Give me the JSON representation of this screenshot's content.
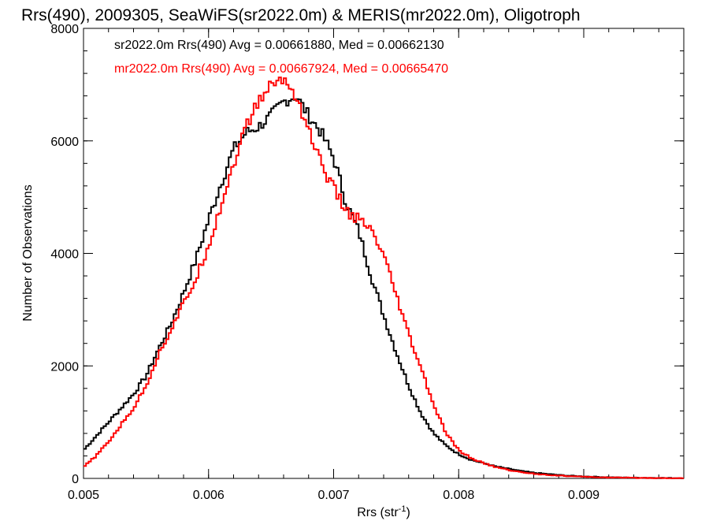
{
  "chart_data": {
    "type": "line",
    "title": "Rrs(490), 2009305, SeaWiFS(sr2022.0m) & MERIS(mr2022.0m), Oligotroph",
    "xlabel_main": "Rrs (str",
    "xlabel_sup": "-1",
    "xlabel_end": ")",
    "ylabel": "Number of Observations",
    "xlim": [
      0.005,
      0.0098
    ],
    "ylim": [
      0,
      8000
    ],
    "x_ticks": [
      0.005,
      0.006,
      0.007,
      0.008,
      0.009
    ],
    "x_tick_labels": [
      "0.005",
      "0.006",
      "0.007",
      "0.008",
      "0.009"
    ],
    "y_ticks": [
      0,
      2000,
      4000,
      6000,
      8000
    ],
    "y_tick_labels": [
      "0",
      "2000",
      "4000",
      "6000",
      "8000"
    ],
    "grid": false,
    "legend_position": "top-left",
    "series": [
      {
        "name": "sr2022.0m Rrs(490) Avg = 0.00661880, Med = 0.00662130",
        "color": "#000000",
        "points": [
          [
            0.005,
            500
          ],
          [
            0.0051,
            750
          ],
          [
            0.0052,
            1000
          ],
          [
            0.0053,
            1250
          ],
          [
            0.0054,
            1500
          ],
          [
            0.0055,
            1820
          ],
          [
            0.0056,
            2300
          ],
          [
            0.0057,
            2750
          ],
          [
            0.0058,
            3300
          ],
          [
            0.0059,
            3900
          ],
          [
            0.006,
            4600
          ],
          [
            0.0061,
            5250
          ],
          [
            0.0062,
            5850
          ],
          [
            0.0063,
            6150
          ],
          [
            0.0064,
            6250
          ],
          [
            0.0065,
            6450
          ],
          [
            0.0066,
            6700
          ],
          [
            0.0067,
            6800
          ],
          [
            0.0068,
            6450
          ],
          [
            0.0069,
            6150
          ],
          [
            0.007,
            5700
          ],
          [
            0.0071,
            4900
          ],
          [
            0.0072,
            4400
          ],
          [
            0.0073,
            3600
          ],
          [
            0.0074,
            2900
          ],
          [
            0.0075,
            2250
          ],
          [
            0.0076,
            1650
          ],
          [
            0.0077,
            1150
          ],
          [
            0.0078,
            800
          ],
          [
            0.0079,
            580
          ],
          [
            0.008,
            430
          ],
          [
            0.0081,
            330
          ],
          [
            0.0082,
            270
          ],
          [
            0.0083,
            210
          ],
          [
            0.0084,
            170
          ],
          [
            0.0085,
            130
          ],
          [
            0.0086,
            100
          ],
          [
            0.0087,
            80
          ],
          [
            0.0088,
            60
          ],
          [
            0.0089,
            45
          ],
          [
            0.009,
            35
          ],
          [
            0.0091,
            28
          ],
          [
            0.0092,
            20
          ],
          [
            0.0093,
            15
          ],
          [
            0.0094,
            12
          ],
          [
            0.0095,
            10
          ],
          [
            0.0096,
            8
          ],
          [
            0.0097,
            6
          ],
          [
            0.0098,
            5
          ]
        ]
      },
      {
        "name": "mr2022.0m Rrs(490) Avg = 0.00667924, Med = 0.00665470",
        "color": "#ff0000",
        "points": [
          [
            0.005,
            200
          ],
          [
            0.0051,
            400
          ],
          [
            0.0052,
            650
          ],
          [
            0.0053,
            950
          ],
          [
            0.0054,
            1250
          ],
          [
            0.0055,
            1650
          ],
          [
            0.0056,
            2200
          ],
          [
            0.0057,
            2650
          ],
          [
            0.0058,
            3100
          ],
          [
            0.0059,
            3550
          ],
          [
            0.006,
            4150
          ],
          [
            0.0061,
            4850
          ],
          [
            0.0062,
            5600
          ],
          [
            0.0063,
            6250
          ],
          [
            0.0064,
            6700
          ],
          [
            0.0065,
            7000
          ],
          [
            0.0066,
            7100
          ],
          [
            0.0067,
            6800
          ],
          [
            0.0068,
            6200
          ],
          [
            0.0069,
            5600
          ],
          [
            0.007,
            5150
          ],
          [
            0.0071,
            4750
          ],
          [
            0.0072,
            4600
          ],
          [
            0.0073,
            4400
          ],
          [
            0.0074,
            3950
          ],
          [
            0.0075,
            3250
          ],
          [
            0.0076,
            2550
          ],
          [
            0.0077,
            1950
          ],
          [
            0.0078,
            1300
          ],
          [
            0.0079,
            800
          ],
          [
            0.008,
            500
          ],
          [
            0.0081,
            360
          ],
          [
            0.0082,
            270
          ],
          [
            0.0083,
            200
          ],
          [
            0.0084,
            150
          ],
          [
            0.0085,
            110
          ],
          [
            0.0086,
            85
          ],
          [
            0.0087,
            65
          ],
          [
            0.0088,
            50
          ],
          [
            0.0089,
            38
          ],
          [
            0.009,
            28
          ],
          [
            0.0091,
            22
          ],
          [
            0.0092,
            17
          ],
          [
            0.0093,
            13
          ],
          [
            0.0094,
            10
          ],
          [
            0.0095,
            8
          ],
          [
            0.0096,
            6
          ],
          [
            0.0097,
            5
          ],
          [
            0.0098,
            4
          ]
        ]
      }
    ]
  }
}
